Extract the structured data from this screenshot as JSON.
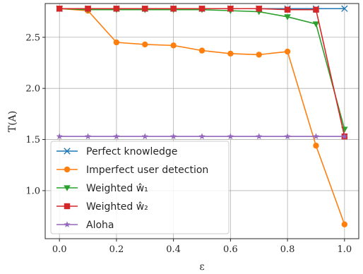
{
  "chart_data": {
    "type": "line",
    "title": "",
    "xlabel": "ε",
    "ylabel": "T(A)",
    "xlim": [
      -0.05,
      1.05
    ],
    "ylim": [
      0.53,
      2.83
    ],
    "xticks": [
      0.0,
      0.2,
      0.4,
      0.6,
      0.8,
      1.0
    ],
    "xtick_labels": [
      "0.0",
      "0.2",
      "0.4",
      "0.6",
      "0.8",
      "1.0"
    ],
    "yticks": [
      1.0,
      1.5,
      2.0,
      2.5
    ],
    "ytick_labels": [
      "1.0",
      "1.5",
      "2.0",
      "2.5"
    ],
    "grid": true,
    "legend_position": "lower-left",
    "x": [
      0.0,
      0.1,
      0.2,
      0.3,
      0.4,
      0.5,
      0.6,
      0.7,
      0.8,
      0.9,
      1.0
    ],
    "series": [
      {
        "name": "Perfect knowledge",
        "marker": "x",
        "color": "#1f77b4",
        "values": [
          2.78,
          2.78,
          2.78,
          2.78,
          2.78,
          2.78,
          2.78,
          2.78,
          2.78,
          2.78,
          2.78
        ]
      },
      {
        "name": "Imperfect user detection",
        "marker": "circle",
        "color": "#ff7f0e",
        "values": [
          2.78,
          2.76,
          2.45,
          2.43,
          2.42,
          2.37,
          2.34,
          2.33,
          2.36,
          1.44,
          0.67
        ]
      },
      {
        "name": "Weighted ŵ₁",
        "marker": "triangle-down",
        "color": "#2ca02c",
        "values": [
          2.78,
          2.77,
          2.77,
          2.77,
          2.77,
          2.77,
          2.76,
          2.75,
          2.7,
          2.63,
          1.6
        ]
      },
      {
        "name": "Weighted ŵ₂",
        "marker": "square",
        "color": "#d62728",
        "values": [
          2.78,
          2.78,
          2.78,
          2.78,
          2.78,
          2.78,
          2.78,
          2.78,
          2.77,
          2.77,
          1.53
        ]
      },
      {
        "name": "Aloha",
        "marker": "star",
        "color": "#9467bd",
        "values": [
          1.53,
          1.53,
          1.53,
          1.53,
          1.53,
          1.53,
          1.53,
          1.53,
          1.53,
          1.53,
          1.53
        ]
      }
    ]
  }
}
